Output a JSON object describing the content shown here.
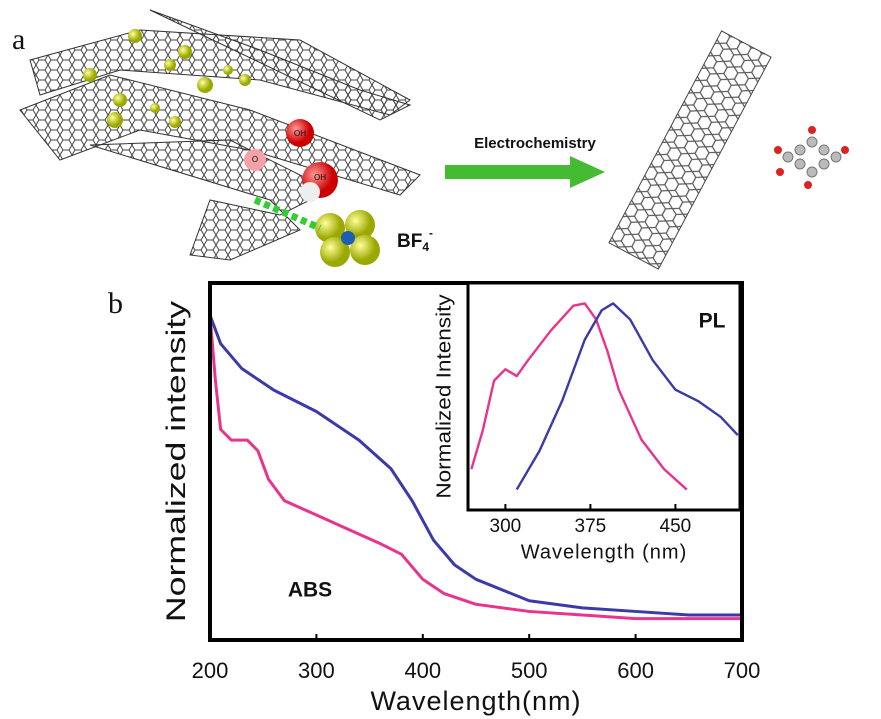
{
  "panel_a": {
    "label": "a",
    "arrow_label": "Electrochemistry",
    "sphere_labels": [
      "OH",
      "O",
      "OH"
    ],
    "ion": {
      "base": "BF",
      "subscript": "4",
      "superscript": "-"
    }
  },
  "panel_b_label": "b",
  "chart_data": [
    {
      "type": "line",
      "xlabel": "Wavelength(nm)",
      "ylabel": "Normalized intensity",
      "annotation": "ABS",
      "xlim": [
        200,
        700
      ],
      "xticks": [
        200,
        300,
        400,
        500,
        600,
        700
      ],
      "ylim": [
        0,
        1
      ],
      "series": [
        {
          "color": "#3a3aa8",
          "x": [
            200,
            210,
            230,
            260,
            300,
            340,
            370,
            390,
            410,
            430,
            450,
            500,
            550,
            600,
            650,
            700
          ],
          "values": [
            0.91,
            0.83,
            0.76,
            0.7,
            0.64,
            0.56,
            0.48,
            0.39,
            0.28,
            0.21,
            0.17,
            0.11,
            0.09,
            0.08,
            0.07,
            0.07
          ]
        },
        {
          "color": "#e8348c",
          "x": [
            200,
            205,
            210,
            220,
            235,
            245,
            255,
            270,
            300,
            330,
            360,
            380,
            400,
            420,
            450,
            500,
            550,
            600,
            700
          ],
          "values": [
            0.91,
            0.73,
            0.59,
            0.56,
            0.56,
            0.53,
            0.45,
            0.39,
            0.35,
            0.31,
            0.27,
            0.24,
            0.17,
            0.13,
            0.1,
            0.08,
            0.07,
            0.06,
            0.06
          ]
        }
      ]
    },
    {
      "type": "line",
      "xlabel": "Wavelength (nm)",
      "ylabel": "Normalized Intensity",
      "annotation": "PL",
      "xlim": [
        267,
        507
      ],
      "xticks": [
        300,
        375,
        450
      ],
      "ylim": [
        0,
        1
      ],
      "series": [
        {
          "color": "#e8348c",
          "x": [
            270,
            280,
            290,
            300,
            310,
            320,
            340,
            360,
            370,
            380,
            390,
            400,
            420,
            440,
            460
          ],
          "values": [
            0.18,
            0.35,
            0.57,
            0.62,
            0.59,
            0.66,
            0.79,
            0.9,
            0.91,
            0.84,
            0.7,
            0.53,
            0.31,
            0.18,
            0.09
          ]
        },
        {
          "color": "#3a3aa8",
          "x": [
            310,
            330,
            350,
            370,
            385,
            395,
            410,
            430,
            450,
            470,
            490,
            505
          ],
          "values": [
            0.09,
            0.26,
            0.48,
            0.75,
            0.88,
            0.91,
            0.84,
            0.66,
            0.53,
            0.48,
            0.41,
            0.33
          ]
        }
      ]
    }
  ]
}
